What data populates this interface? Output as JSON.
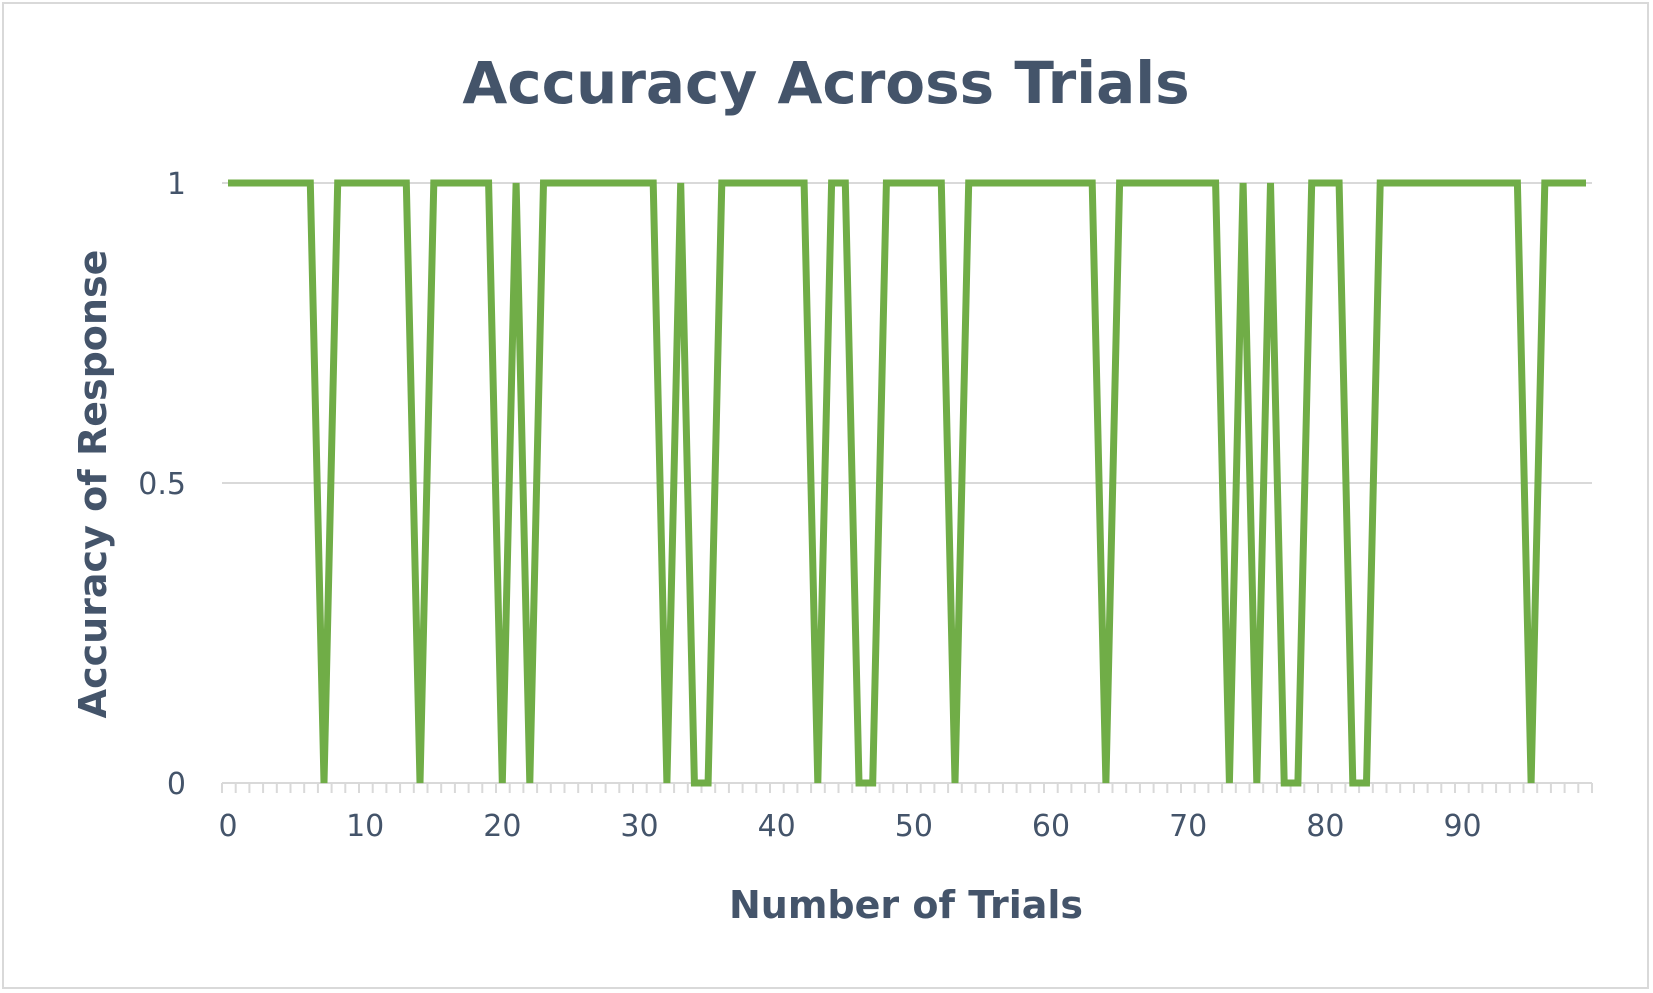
{
  "chart_data": {
    "type": "line",
    "title": "Accuracy Across Trials",
    "xlabel": "Number of Trials",
    "ylabel": "Accuracy of Response",
    "xlim": [
      0,
      99
    ],
    "ylim": [
      0,
      1
    ],
    "x_ticks": [
      "0",
      "10",
      "20",
      "30",
      "40",
      "50",
      "60",
      "70",
      "80",
      "90"
    ],
    "y_ticks": [
      "0",
      "0.5",
      "1"
    ],
    "grid": true,
    "legend": "none",
    "series": [
      {
        "color": "#70ad47",
        "values": [
          1,
          1,
          1,
          1,
          1,
          1,
          1,
          0,
          1,
          1,
          1,
          1,
          1,
          1,
          0,
          1,
          1,
          1,
          1,
          1,
          0,
          1,
          0,
          1,
          1,
          1,
          1,
          1,
          1,
          1,
          1,
          1,
          0,
          1,
          0,
          0,
          1,
          1,
          1,
          1,
          1,
          1,
          1,
          0,
          1,
          1,
          0,
          0,
          1,
          1,
          1,
          1,
          1,
          0,
          1,
          1,
          1,
          1,
          1,
          1,
          1,
          1,
          1,
          1,
          0,
          1,
          1,
          1,
          1,
          1,
          1,
          1,
          1,
          0,
          1,
          0,
          1,
          0,
          0,
          1,
          1,
          1,
          0,
          0,
          1,
          1,
          1,
          1,
          1,
          1,
          1,
          1,
          1,
          1,
          1,
          0,
          1,
          1,
          1,
          1
        ]
      }
    ],
    "colors": {
      "line": "#70ad47",
      "gridline": "#d9d9d9",
      "text": "#44546a",
      "border": "#d9d9d9"
    }
  }
}
